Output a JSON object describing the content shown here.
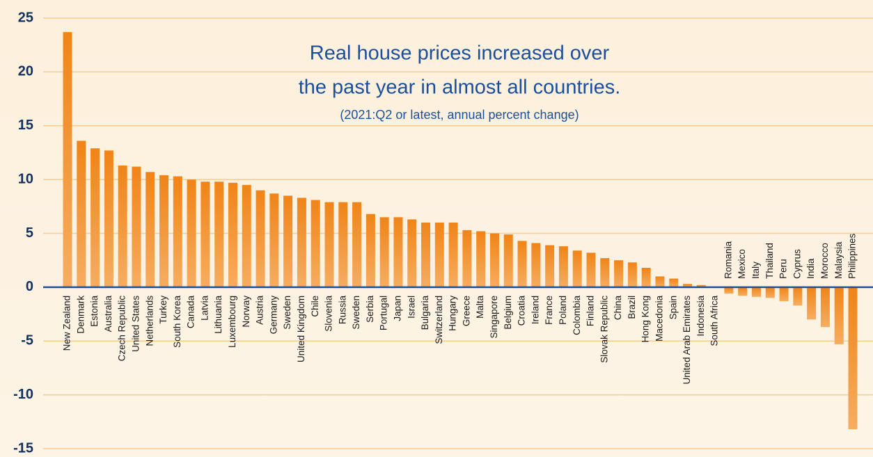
{
  "chart_data": {
    "type": "bar",
    "title": [
      "Real house prices increased over",
      "the past year in almost all countries."
    ],
    "subtitle": "(2021:Q2 or latest, annual percent change)",
    "categories": [
      "New Zealand",
      "Denmark",
      "Estonia",
      "Australia",
      "Czech Republic",
      "United States",
      "Netherlands",
      "Turkey",
      "South Korea",
      "Canada",
      "Latvia",
      "Lithuania",
      "Luxembourg",
      "Norway",
      "Austria",
      "Germany",
      "Sweden",
      "United Kingdom",
      "Chile",
      "Slovenia",
      "Russia",
      "Sweden",
      "Serbia",
      "Portugal",
      "Japan",
      "Israel",
      "Bulgaria",
      "Switzerland",
      "Hungary",
      "Greece",
      "Malta",
      "Singapore",
      "Belgium",
      "Croatia",
      "Ireland",
      "France",
      "Poland",
      "Colombia",
      "Finland",
      "Slovak Republic",
      "China",
      "Brazil",
      "Hong Kong",
      "Macedonia",
      "Spain",
      "United Arab Emirates",
      "Indonesia",
      "South Africa",
      "Romania",
      "Mexico",
      "Italy",
      "Thailand",
      "Peru",
      "Cyprus",
      "India",
      "Morocco",
      "Malaysia",
      "Philippines"
    ],
    "values": [
      23.7,
      13.6,
      12.9,
      12.7,
      11.3,
      11.2,
      10.7,
      10.4,
      10.3,
      10.0,
      9.8,
      9.8,
      9.7,
      9.5,
      9.0,
      8.7,
      8.5,
      8.3,
      8.1,
      7.9,
      7.9,
      7.9,
      6.8,
      6.5,
      6.5,
      6.3,
      6.0,
      6.0,
      6.0,
      5.3,
      5.2,
      5.0,
      4.9,
      4.3,
      4.1,
      3.9,
      3.8,
      3.4,
      3.2,
      2.7,
      2.5,
      2.3,
      1.8,
      1.0,
      0.8,
      0.3,
      0.2,
      0.0,
      -0.6,
      -0.8,
      -0.9,
      -1.0,
      -1.3,
      -1.7,
      -3.0,
      -3.7,
      -5.3,
      -13.2
    ],
    "color": "#f28a22",
    "ylim": [
      -15,
      25
    ],
    "yticks": [
      -15,
      -10,
      -5,
      0,
      5,
      10,
      15,
      20,
      25
    ],
    "grid": true
  }
}
